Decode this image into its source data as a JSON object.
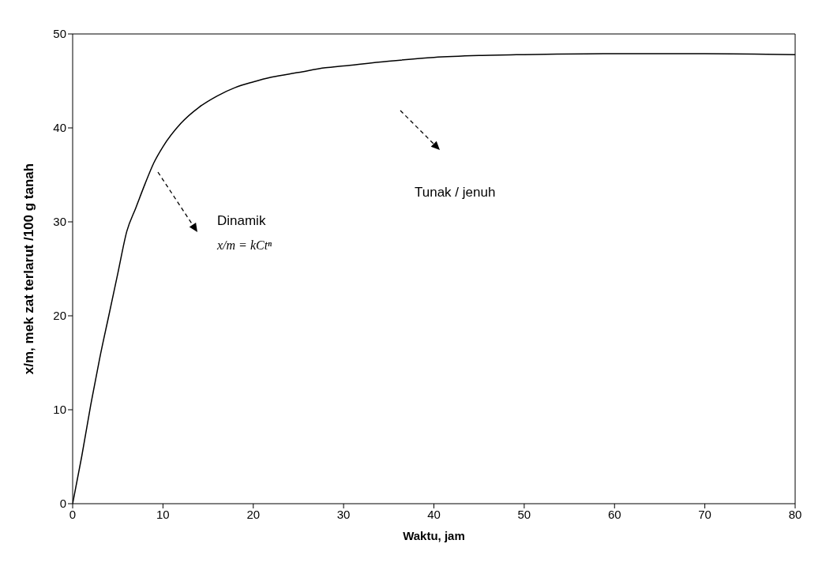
{
  "chart_data": {
    "type": "line",
    "xlabel": "Waktu, jam",
    "ylabel": "x/m, mek zat terlarut /100 g tanah",
    "series": [
      {
        "color": "#000000",
        "x": [
          0,
          1,
          2,
          3,
          4,
          5,
          6,
          7,
          8,
          9,
          10,
          12,
          14,
          16,
          18,
          20,
          22,
          25,
          28,
          30,
          35,
          40,
          45,
          50,
          60,
          70,
          80
        ],
        "values": [
          0,
          5,
          10.5,
          15.5,
          20,
          24.5,
          29,
          31.5,
          34,
          36.3,
          38,
          40.5,
          42.2,
          43.4,
          44.3,
          44.9,
          45.4,
          45.9,
          46.4,
          46.6,
          47.1,
          47.5,
          47.7,
          47.8,
          47.9,
          47.9,
          47.8
        ]
      }
    ],
    "xlim": [
      0,
      80
    ],
    "xticks": [
      0,
      10,
      20,
      30,
      40,
      50,
      60,
      70,
      80
    ],
    "ylim": [
      0,
      50
    ],
    "yticks": [
      0,
      10,
      20,
      30,
      40,
      50
    ],
    "grid": false,
    "annotations": [
      "Dinamik",
      "Tunak / jenuh",
      "x/m = kCtⁿ"
    ]
  }
}
